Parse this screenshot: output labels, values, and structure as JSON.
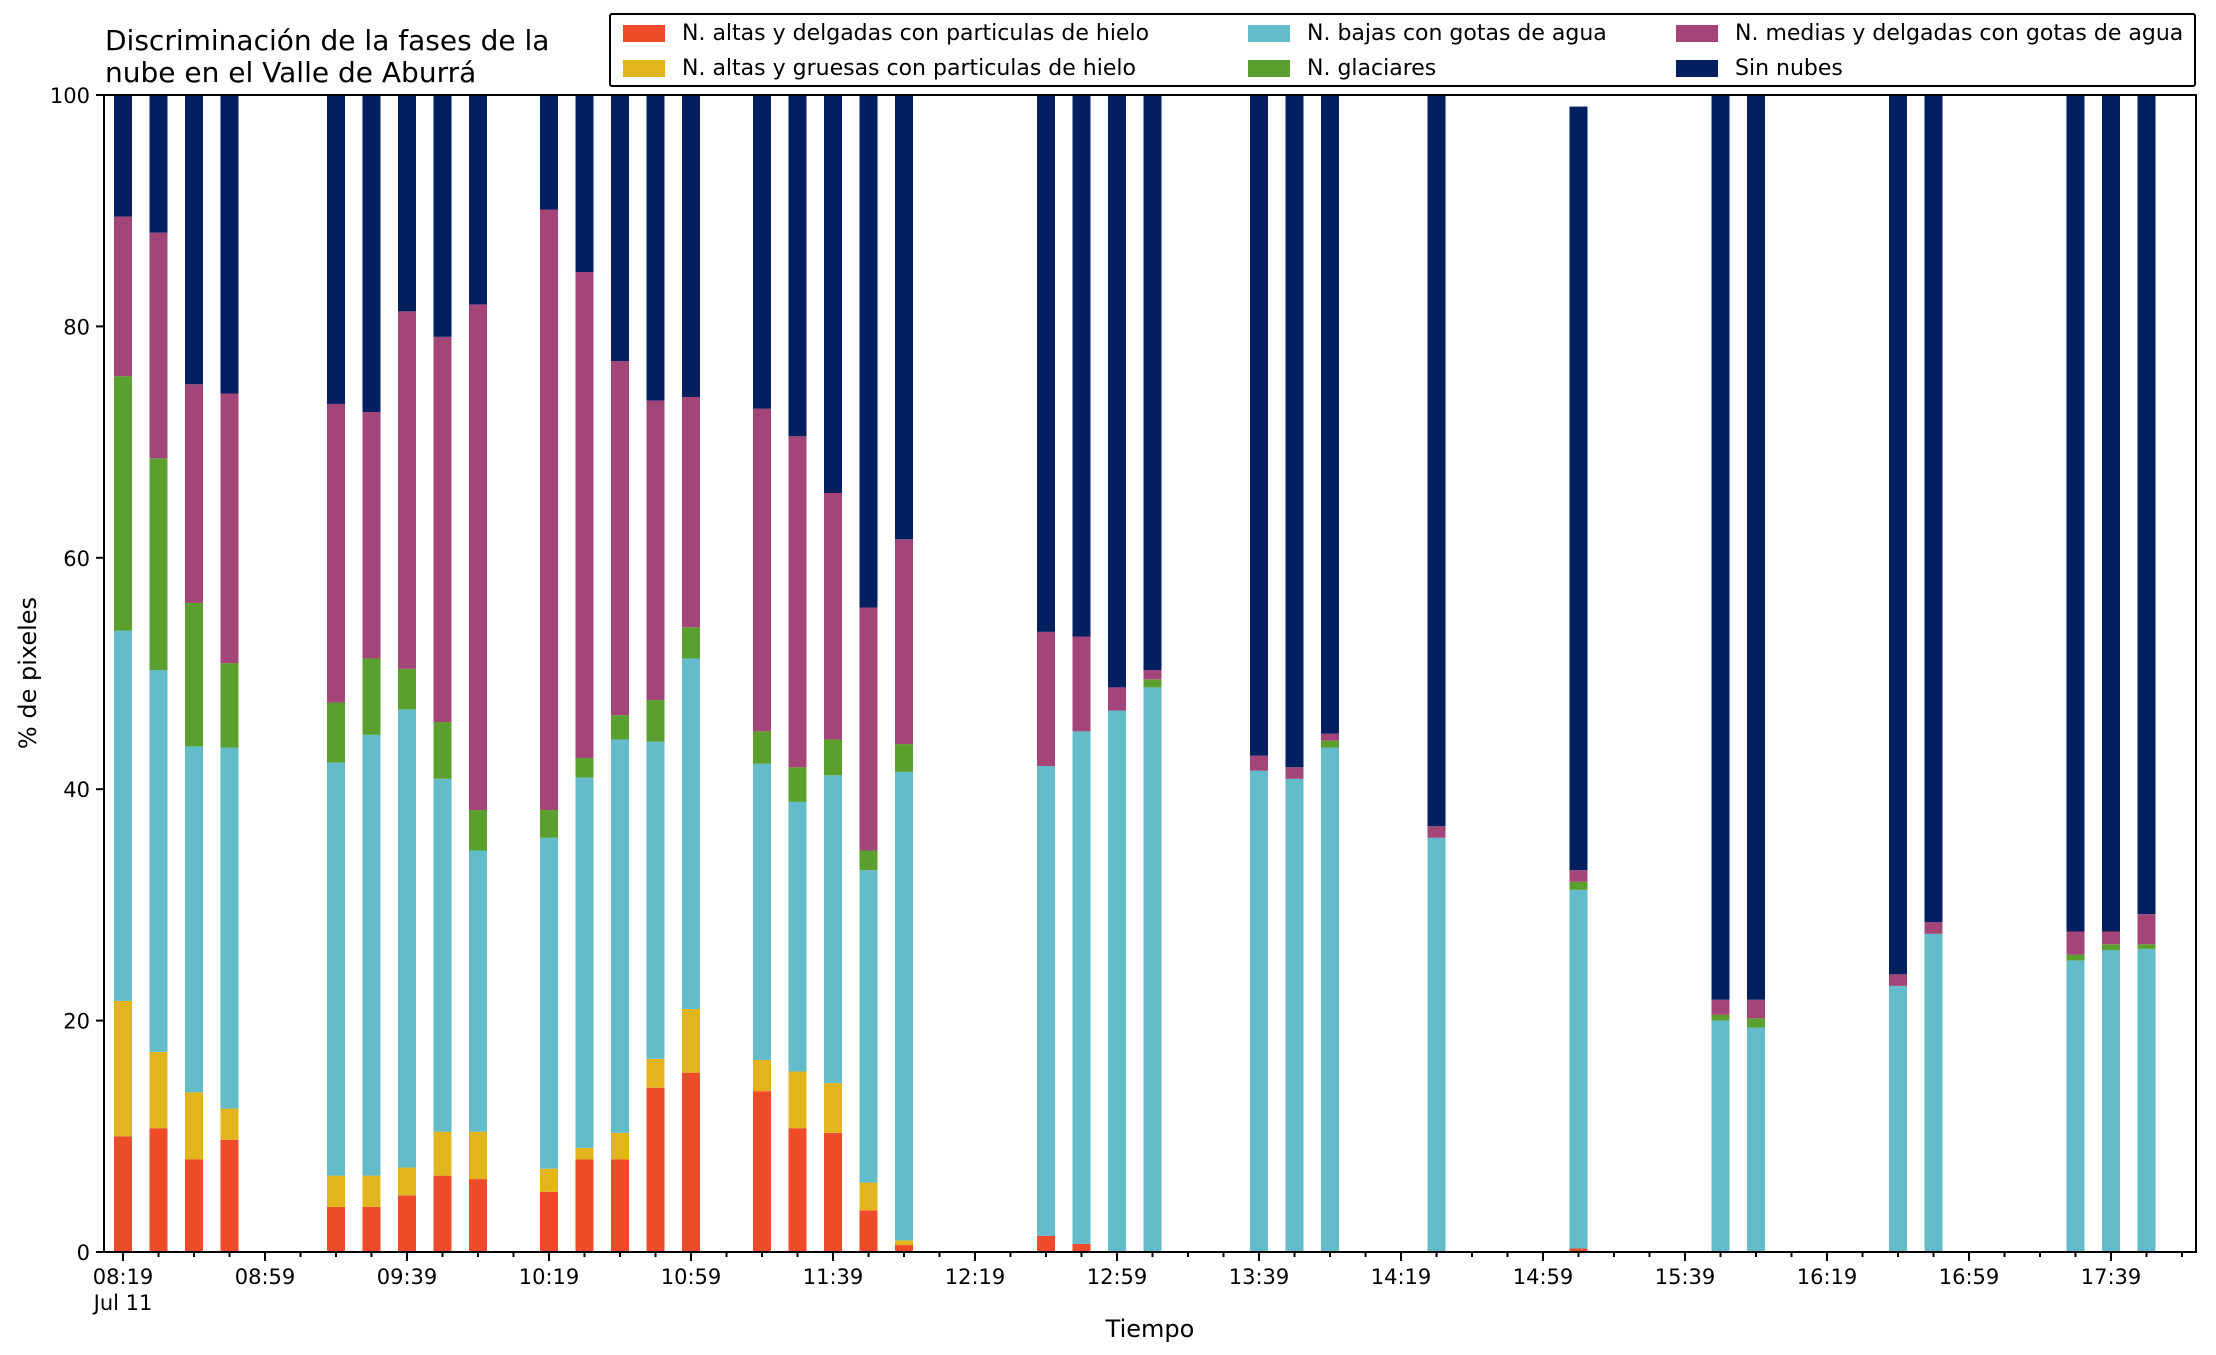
{
  "chart_data": {
    "type": "bar",
    "stacked": true,
    "title": "Discriminación de la fases de la nube en el Valle de Aburrá",
    "title_lines": [
      "Discriminación de la fases de la",
      "nube en el Valle de Aburrá"
    ],
    "xlabel": "Tiempo",
    "ylabel": "% de pixeles",
    "ylim": [
      0,
      100
    ],
    "yticks": [
      0,
      20,
      40,
      60,
      80,
      100
    ],
    "grid": false,
    "legend_position": "top-right",
    "x_labeled_ticks": [
      "08:19",
      "08:59",
      "09:39",
      "10:19",
      "10:59",
      "11:39",
      "12:19",
      "12:59",
      "13:39",
      "14:19",
      "14:59",
      "15:39",
      "16:19",
      "16:59",
      "17:39"
    ],
    "x_date_label": "Jul 11",
    "x": [
      "08:19",
      "08:29",
      "08:39",
      "08:49",
      "08:59",
      "09:09",
      "09:19",
      "09:29",
      "09:39",
      "09:49",
      "09:59",
      "10:09",
      "10:19",
      "10:29",
      "10:39",
      "10:49",
      "10:59",
      "11:09",
      "11:19",
      "11:29",
      "11:39",
      "11:49",
      "11:59",
      "12:09",
      "12:19",
      "12:29",
      "12:39",
      "12:49",
      "12:59",
      "13:09",
      "13:19",
      "13:29",
      "13:39",
      "13:49",
      "13:59",
      "14:09",
      "14:19",
      "14:29",
      "14:39",
      "14:49",
      "14:59",
      "15:09",
      "15:19",
      "15:29",
      "15:39",
      "15:49",
      "15:59",
      "16:09",
      "16:19",
      "16:29",
      "16:39",
      "16:49",
      "16:59",
      "17:09",
      "17:19",
      "17:29",
      "17:39",
      "17:49",
      "17:59"
    ],
    "series": [
      {
        "name": "N. altas y delgadas con particulas de hielo",
        "color": "#ee4b2b",
        "values": [
          10,
          10.7,
          8,
          9.7,
          0,
          0,
          3.9,
          3.9,
          4.9,
          6.6,
          6.3,
          0,
          5.2,
          8,
          8,
          14.2,
          15.5,
          0,
          13.9,
          10.7,
          10.3,
          3.6,
          0.6,
          0,
          0,
          0,
          1.4,
          0.7,
          0,
          0,
          0,
          0,
          0,
          0,
          0,
          0,
          0,
          0,
          0,
          0,
          0,
          0.3,
          0,
          0,
          0,
          0,
          0,
          0,
          0,
          0,
          0,
          0,
          0,
          0,
          0,
          0,
          0,
          0,
          0
        ]
      },
      {
        "name": "N. altas y gruesas con particulas de hielo",
        "color": "#e3b51d",
        "values": [
          11.7,
          6.6,
          5.8,
          2.7,
          0,
          0,
          2.7,
          2.7,
          2.4,
          3.8,
          4.1,
          0,
          2,
          1,
          2.3,
          2.5,
          5.5,
          0,
          2.7,
          4.9,
          4.3,
          2.4,
          0.4,
          0,
          0,
          0,
          0,
          0,
          0,
          0,
          0,
          0,
          0,
          0,
          0,
          0,
          0,
          0,
          0,
          0,
          0,
          0,
          0,
          0,
          0,
          0,
          0,
          0,
          0,
          0,
          0,
          0,
          0,
          0,
          0,
          0,
          0,
          0,
          0
        ]
      },
      {
        "name": "N. bajas con gotas de agua",
        "color": "#63bcc9",
        "values": [
          32,
          33,
          29.9,
          31.2,
          0,
          0,
          35.7,
          38.1,
          39.6,
          30.5,
          24.3,
          0,
          28.6,
          32,
          34,
          27.4,
          30.3,
          0,
          25.6,
          23.3,
          26.6,
          27,
          40.5,
          0,
          0,
          0,
          40.6,
          44.3,
          46.8,
          48.8,
          0,
          0,
          41.6,
          40.9,
          43.6,
          0,
          0,
          35.8,
          0,
          0,
          0,
          31,
          0,
          0,
          0,
          20,
          19.4,
          0,
          0,
          0,
          23,
          27.5,
          0,
          0,
          0,
          25.2,
          26.1,
          26.2,
          0
        ]
      },
      {
        "name": "N. glaciares",
        "color": "#5b9f2f",
        "values": [
          22,
          18.3,
          12.4,
          7.3,
          0,
          0,
          5.2,
          6.6,
          3.5,
          4.9,
          3.5,
          0,
          2.4,
          1.7,
          2.1,
          3.6,
          2.7,
          0,
          2.8,
          3,
          3.1,
          1.7,
          2.4,
          0,
          0,
          0,
          0,
          0,
          0,
          0.7,
          0,
          0,
          0,
          0,
          0.6,
          0,
          0,
          0,
          0,
          0,
          0,
          0.7,
          0,
          0,
          0,
          0.5,
          0.8,
          0,
          0,
          0,
          0,
          0,
          0,
          0,
          0,
          0.5,
          0.5,
          0.4,
          0
        ]
      },
      {
        "name": "N. medias y delgadas con gotas de agua",
        "color": "#a4457a",
        "values": [
          13.8,
          19.5,
          18.9,
          23.3,
          0,
          0,
          25.8,
          21.3,
          30.9,
          33.3,
          43.7,
          0,
          51.9,
          42,
          30.6,
          25.9,
          19.9,
          0,
          27.9,
          28.6,
          21.3,
          21,
          17.7,
          0,
          0,
          0,
          11.6,
          8.2,
          2,
          0.8,
          0,
          0,
          1.3,
          1,
          0.6,
          0,
          0,
          1,
          0,
          0,
          0,
          1,
          0,
          0,
          0,
          1.3,
          1.6,
          0,
          0,
          0,
          1,
          1,
          0,
          0,
          0,
          2,
          1.1,
          2.6,
          0
        ]
      },
      {
        "name": "Sin nubes",
        "color": "#021f5f",
        "values": [
          10.5,
          11.9,
          25,
          25.8,
          0,
          0,
          26.7,
          27.4,
          18.7,
          20.9,
          18.1,
          0,
          9.9,
          15.3,
          23,
          26.4,
          26.1,
          0,
          27.1,
          29.5,
          34.4,
          44.3,
          38.4,
          0,
          0,
          0,
          46.4,
          46.8,
          51.2,
          49.7,
          0,
          0,
          57.1,
          58.1,
          55.2,
          0,
          0,
          63.2,
          0,
          0,
          0,
          66,
          0,
          0,
          0,
          78.2,
          78.2,
          0,
          0,
          0,
          76,
          71.5,
          0,
          0,
          0,
          72.3,
          72.3,
          70.8,
          0
        ]
      }
    ]
  }
}
